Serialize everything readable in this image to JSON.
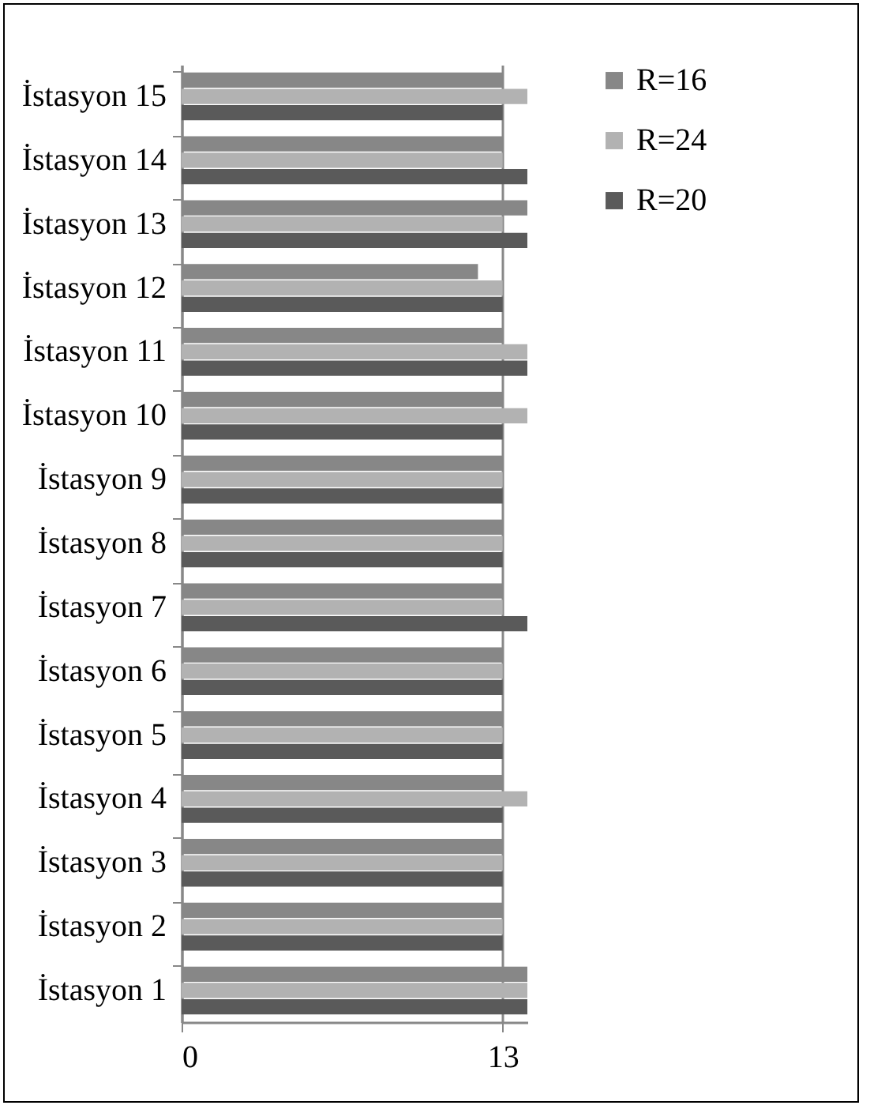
{
  "chart_data": {
    "type": "bar",
    "orientation": "horizontal",
    "categories": [
      "İstasyon 15",
      "İstasyon 14",
      "İstasyon 13",
      "İstasyon 12",
      "İstasyon 11",
      "İstasyon 10",
      "İstasyon 9",
      "İstasyon 8",
      "İstasyon 7",
      "İstasyon 6",
      "İstasyon 5",
      "İstasyon 4",
      "İstasyon 3",
      "İstasyon 2",
      "İstasyon 1"
    ],
    "series": [
      {
        "name": "R=16",
        "color": "#878787",
        "values": [
          13,
          13,
          14,
          12,
          13,
          13,
          13,
          13,
          13,
          13,
          13,
          13,
          13,
          13,
          14
        ]
      },
      {
        "name": "R=24",
        "color": "#b2b2b2",
        "values": [
          14,
          13,
          13,
          13,
          14,
          14,
          13,
          13,
          13,
          13,
          13,
          14,
          13,
          13,
          14
        ]
      },
      {
        "name": "R=20",
        "color": "#5a5a5a",
        "values": [
          13,
          14,
          14,
          13,
          14,
          13,
          13,
          13,
          14,
          13,
          13,
          13,
          13,
          13,
          14
        ]
      }
    ],
    "xlim": [
      0,
      14
    ],
    "xticks": [
      0,
      13
    ],
    "grid": "x",
    "legend": "right"
  }
}
